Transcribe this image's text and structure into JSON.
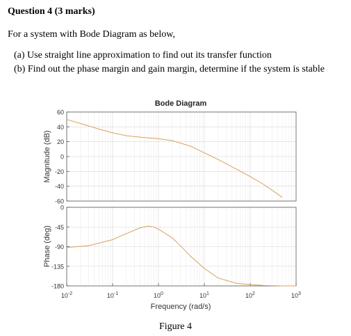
{
  "question": {
    "title": "Question 4 (3 marks)",
    "intro": "For a system with Bode Diagram as below,",
    "part_a": "(a) Use straight line approximation to find out its transfer function",
    "part_b": "(b) Find out the phase margin and gain margin, determine if the system is stable"
  },
  "figure": {
    "caption": "Figure 4"
  },
  "chart_data": {
    "type": "line",
    "title": "Bode Diagram",
    "xlabel": "Frequency (rad/s)",
    "x_scale": "log",
    "xlim": [
      0.01,
      1000
    ],
    "x_ticks": [
      {
        "base": "10",
        "exp": "-2"
      },
      {
        "base": "10",
        "exp": "-1"
      },
      {
        "base": "10",
        "exp": "0"
      },
      {
        "base": "10",
        "exp": "1"
      },
      {
        "base": "10",
        "exp": "2"
      },
      {
        "base": "10",
        "exp": "3"
      }
    ],
    "line_color": "#d9a05b",
    "grid": true,
    "magnitude": {
      "ylabel": "Magnitude (dB)",
      "ylim": [
        -60,
        60
      ],
      "y_ticks": [
        "60",
        "40",
        "20",
        "0",
        "-20",
        "-40",
        "-60"
      ],
      "x": [
        0.01,
        0.02,
        0.05,
        0.1,
        0.2,
        0.5,
        1,
        2,
        5,
        10,
        20,
        50,
        100,
        200,
        500
      ],
      "y": [
        50,
        44.5,
        37,
        32,
        28,
        25.5,
        24,
        21.5,
        14,
        5,
        -4,
        -17,
        -27,
        -38,
        -55
      ]
    },
    "phase": {
      "ylabel": "Phase (deg)",
      "ylim": [
        -180,
        0
      ],
      "y_ticks": [
        "0",
        "-45",
        "-90",
        "-135",
        "-180"
      ],
      "x": [
        0.01,
        0.03,
        0.1,
        0.2,
        0.4,
        0.6,
        0.8,
        1,
        2,
        3,
        5,
        10,
        20,
        50,
        100,
        200,
        500,
        1000
      ],
      "y": [
        -92,
        -88,
        -74,
        -60,
        -47,
        -43,
        -45,
        -50,
        -70,
        -88,
        -112,
        -140,
        -162,
        -174,
        -177,
        -179,
        -180,
        -180
      ]
    }
  }
}
